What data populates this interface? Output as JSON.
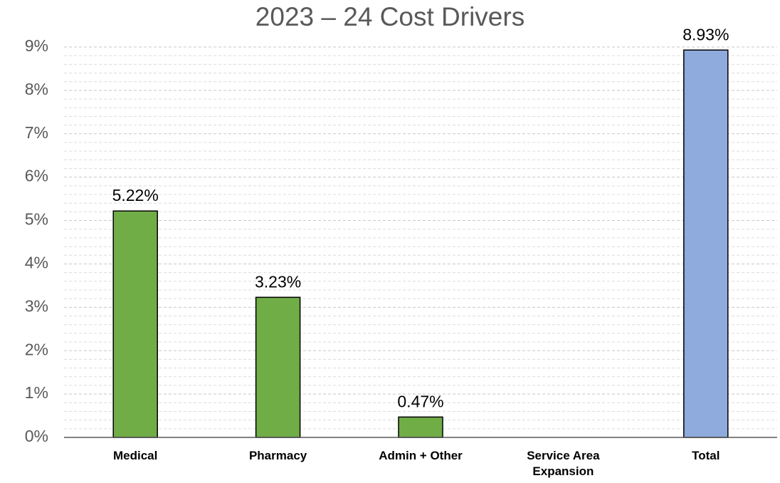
{
  "chart_data": {
    "type": "bar",
    "title": "2023 – 24 Cost Drivers",
    "categories": [
      "Medical",
      "Pharmacy",
      "Admin + Other",
      "Service Area Expansion",
      "Total"
    ],
    "values": [
      5.22,
      3.23,
      0.47,
      null,
      8.93
    ],
    "value_labels": [
      "5.22%",
      "3.23%",
      "0.47%",
      null,
      "8.93%"
    ],
    "colors": [
      "#70ad47",
      "#70ad47",
      "#70ad47",
      "#70ad47",
      "#8faadc"
    ],
    "ylim": [
      0,
      9
    ],
    "yticks": [
      {
        "value": 0,
        "label": "0%"
      },
      {
        "value": 1,
        "label": "1%"
      },
      {
        "value": 2,
        "label": "2%"
      },
      {
        "value": 3,
        "label": "3%"
      },
      {
        "value": 4,
        "label": "4%"
      },
      {
        "value": 5,
        "label": "5%"
      },
      {
        "value": 6,
        "label": "6%"
      },
      {
        "value": 7,
        "label": "7%"
      },
      {
        "value": 8,
        "label": "8%"
      },
      {
        "value": 9,
        "label": "9%"
      }
    ],
    "grid": true
  }
}
